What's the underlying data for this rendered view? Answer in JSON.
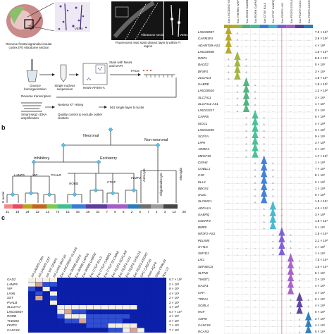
{
  "panel_labels": {
    "a": "",
    "b": "b",
    "c": "c"
  },
  "panel_a": {
    "caption_remove": "Remove frontal agranular insular cortex (FI) vibratome section",
    "caption_vens": "VENs",
    "caption_nissl": "Fluorescent nissl stain dissect layer 5 within FI region",
    "caption_vibratome": "Vibratome section",
    "caption_vens2": "VENs",
    "step_dounce": "Dounce homogenization",
    "step_single": "Single nucleus suspension",
    "stain_label": "Stain with NeuN and DAPI",
    "facs_label": "FACS",
    "axis_neun": "NeuN-AF594-A",
    "axis_dapi": "DAPI-A",
    "step_rt": "Reverse transcription",
    "step_smart": "Smart-seq2 cDNA amplification",
    "step_nextera": "Nextera XT HiSeq",
    "step_qc": "Quality control & exclude outlier clusters",
    "step_result": "561 single layer 5 nuclei"
  },
  "panel_b": {
    "neuronal": "Neuronal",
    "non_neuronal": "Non-neuronal",
    "inhibitory": "Inhibitory",
    "excitatory": "Excitatory",
    "astrocyte": "Astrocyte",
    "oligodendrocyte": "Oligodendrocyte",
    "microglia": "Microglia",
    "genes": [
      "LAMP5",
      "VIP",
      "PVALB",
      "RORB",
      "CTGF",
      "FEZF2"
    ],
    "n_nuclei_label": "N nuclei",
    "counts": [
      "31",
      "19",
      "24",
      "22",
      "12",
      "74",
      "15",
      "16",
      "18",
      "31",
      "7",
      "6",
      "6",
      "2",
      "5",
      "7",
      "4",
      "3",
      "13",
      "26"
    ]
  },
  "panel_c": {
    "columns": [
      "Inh LAMP5 CRH",
      "Inh LAMP5 SST",
      "Inh VIP SFRP1",
      "Inh LHX6 WNT16",
      "Exc LINC00507 GLP1R",
      "Exc RORB WSP1",
      "Exc RORB CAPN5",
      "Exc RORB GABRE",
      "Exc CTGF ELL3",
      "Exc CTGF GABRQ",
      "Exc CTGF SLC30A6",
      "Exc FEZF2 EGFLAM",
      "Exc FEZF2 LIX1",
      "Exc FEZF2 CASC18",
      "Exc FEZF2 ASGR2",
      "OPC CASC18",
      "Astro AQP4",
      "Oligo OPALIN",
      "Non C3"
    ],
    "rows": [
      "GAD2",
      "LAMP5",
      "VIP",
      "LHX6",
      "SST",
      "PVALB",
      "SLC17A7",
      "LINC00507",
      "RORB",
      "THEMIS",
      "FEZF2",
      "CASC18"
    ],
    "values_label": [
      "6.7 × 10²",
      "2 × 10²",
      "9 × 10¹",
      "4 × 10¹",
      "2 × 10¹",
      "2 × 10¹",
      "1 × 10²",
      "6.7 × 10¹",
      "4 × 10¹",
      "2 × 10¹",
      "7 × 10¹",
      "7 × 10¹"
    ],
    "matrix": [
      [
        0.9,
        0.95,
        0.9,
        0.85,
        0.0,
        0.0,
        0.0,
        0.0,
        0.0,
        0.0,
        0.0,
        0.0,
        0.0,
        0.0,
        0.0,
        0.0,
        0.0,
        0.0,
        0.0
      ],
      [
        0.9,
        0.6,
        0.1,
        0.1,
        0.0,
        0.0,
        0.0,
        0.0,
        0.0,
        0.0,
        0.0,
        0.0,
        0.0,
        0.0,
        0.0,
        0.0,
        0.0,
        0.0,
        0.0
      ],
      [
        0.1,
        0.0,
        0.95,
        0.0,
        0.0,
        0.0,
        0.0,
        0.0,
        0.0,
        0.0,
        0.0,
        0.0,
        0.0,
        0.0,
        0.0,
        0.0,
        0.0,
        0.0,
        0.0
      ],
      [
        0.0,
        0.1,
        0.0,
        0.9,
        0.0,
        0.0,
        0.0,
        0.0,
        0.0,
        0.0,
        0.0,
        0.0,
        0.0,
        0.0,
        0.0,
        0.0,
        0.0,
        0.0,
        0.0
      ],
      [
        0.0,
        0.4,
        0.0,
        0.2,
        0.0,
        0.0,
        0.0,
        0.0,
        0.0,
        0.0,
        0.0,
        0.0,
        0.0,
        0.0,
        0.0,
        0.0,
        0.0,
        0.0,
        0.0
      ],
      [
        0.0,
        0.0,
        0.0,
        0.7,
        0.0,
        0.0,
        0.0,
        0.0,
        0.0,
        0.0,
        0.0,
        0.0,
        0.0,
        0.0,
        0.0,
        0.0,
        0.0,
        0.0,
        0.0
      ],
      [
        0.0,
        0.0,
        0.0,
        0.0,
        0.9,
        0.9,
        0.9,
        0.9,
        0.9,
        0.9,
        0.9,
        0.9,
        0.9,
        0.9,
        0.9,
        0.0,
        0.0,
        0.0,
        0.0
      ],
      [
        0.0,
        0.0,
        0.0,
        0.0,
        0.95,
        0.5,
        0.1,
        0.1,
        0.0,
        0.0,
        0.0,
        0.0,
        0.0,
        0.0,
        0.0,
        0.0,
        0.0,
        0.0,
        0.0
      ],
      [
        0.0,
        0.0,
        0.0,
        0.0,
        0.2,
        0.9,
        0.9,
        0.9,
        0.3,
        0.3,
        0.2,
        0.1,
        0.1,
        0.1,
        0.0,
        0.0,
        0.0,
        0.0,
        0.0
      ],
      [
        0.0,
        0.0,
        0.0,
        0.0,
        0.0,
        0.1,
        0.3,
        0.5,
        0.1,
        0.1,
        0.1,
        0.2,
        0.1,
        0.0,
        0.0,
        0.0,
        0.0,
        0.0,
        0.0
      ],
      [
        0.0,
        0.0,
        0.0,
        0.0,
        0.0,
        0.0,
        0.0,
        0.0,
        0.1,
        0.2,
        0.3,
        0.9,
        0.9,
        0.9,
        0.9,
        0.0,
        0.0,
        0.0,
        0.0
      ],
      [
        0.0,
        0.0,
        0.0,
        0.0,
        0.0,
        0.0,
        0.0,
        0.0,
        0.0,
        0.0,
        0.0,
        0.2,
        0.2,
        0.9,
        0.6,
        0.8,
        0.0,
        0.0,
        0.0
      ]
    ]
  },
  "panel_violin": {
    "columns": [
      "Exc LINC00507 GLP1R",
      "Exc THEMIS WSP1",
      "Exc RORB GABRE",
      "Exc RORB CAPN5",
      "Exc CTGF ELL3",
      "Exc CTGF GABRQ",
      "Exc FEZF2 LIX1",
      "Exc FEZF2 EGFLAM",
      "Exc FEZF2 CASC18",
      "Exc FEZF2 ASGR2"
    ],
    "genes": [
      "LINC00507",
      "CARM1P1",
      "ADAMTS9-AS1",
      "LINC00508",
      "WSP1",
      "BACE2",
      "BFSP1",
      "ZCCHC4",
      "GABRE",
      "LINC00616",
      "SLC7A11",
      "SLC7A11-AS1",
      "LINC01217",
      "CAPN5",
      "ISOC1",
      "LINC01239",
      "SCN7A",
      "LIPH",
      "ARMC4",
      "MEGF10",
      "CNIH3",
      "COBLL1",
      "C1R",
      "ELL3",
      "BBOX1",
      "SV2C",
      "SLC04C1",
      "ADRA1A",
      "GABRQ",
      "C6ORF4",
      "BMP5",
      "NR2F2-AS1",
      "PDLIM5",
      "SYTL5",
      "SMYD1",
      "LIX1",
      "SEPSECS",
      "SLFN5",
      "TWIST1",
      "GALR1",
      "CFH",
      "TRPA1",
      "SCML4",
      "HGF",
      "ASPM",
      "CASC18",
      "RCAN3"
    ],
    "values": [
      "7.3 × 10³",
      "3.9 × 10²",
      "4 × 10²",
      "1.5 × 10¹",
      "8.6 × 10¹",
      "5 × 10¹",
      "3 × 10¹",
      "1.9 × 10¹",
      "1.8 × 10²",
      "1.2 × 10²",
      "3 × 10¹",
      "1 × 10¹",
      "3 × 10¹",
      "5 × 10²",
      "4 × 10²",
      "3 × 10²",
      "9 × 10¹",
      "3 × 10²",
      "3 × 10¹",
      "1.7 × 10²",
      "1 × 10²",
      "7 × 10¹",
      "8 × 10¹",
      "2 × 10²",
      "1 × 10²",
      "5 × 10²",
      "1.9 × 10¹",
      "4.5 × 10²",
      "3 × 10²",
      "1.8 × 10¹",
      "3 × 10¹",
      "1.5 × 10¹",
      "2.1 × 10²",
      "4 × 10²",
      "1 × 10¹",
      "7.3 × 10¹",
      "1.5 × 10¹",
      "5 × 10¹",
      "2 × 10¹",
      "4 × 10¹",
      "3 × 10¹",
      "6 × 10¹",
      "4 × 10¹",
      "5 × 10¹",
      "2 × 10¹",
      "4 × 10¹",
      "5 × 10¹"
    ],
    "highlight": [
      0,
      0,
      0,
      0,
      1,
      1,
      1,
      1,
      2,
      2,
      2,
      2,
      2,
      3,
      3,
      3,
      3,
      3,
      3,
      3,
      4,
      4,
      4,
      4,
      4,
      4,
      4,
      5,
      5,
      5,
      5,
      6,
      6,
      6,
      6,
      7,
      7,
      7,
      7,
      7,
      7,
      8,
      8,
      8,
      9,
      9,
      9
    ],
    "colors": [
      "#b5a51f",
      "#9eb43a",
      "#4caf7d",
      "#3fbf8f",
      "#3a7bd5",
      "#3fb5d0",
      "#7b5cd6",
      "#a25ec4",
      "#5a3c9c",
      "#2a7ab8"
    ]
  }
}
